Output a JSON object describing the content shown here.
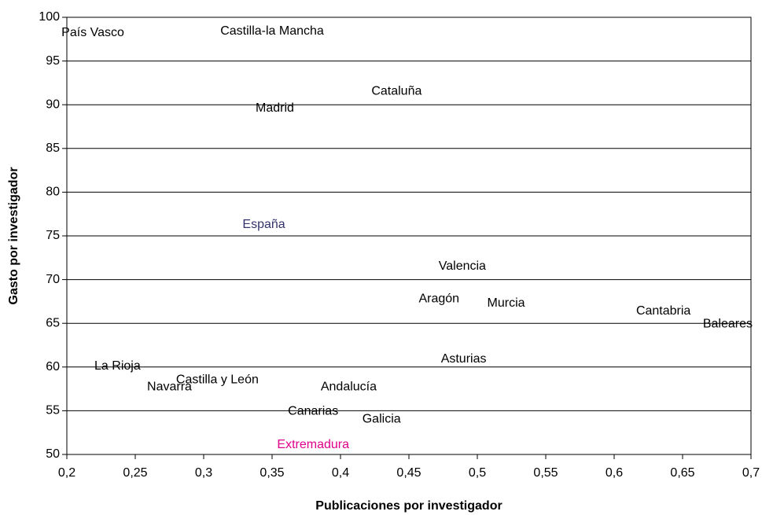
{
  "chart_data": {
    "type": "scatter",
    "x_label": "Publicaciones por investigador",
    "y_label": "Gasto por investigador",
    "labels": [
      "País Vasco",
      "Castilla-la Mancha",
      "Cataluña",
      "Madrid",
      "España",
      "Valencia",
      "Aragón",
      "Murcia",
      "Cantabria",
      "Baleares",
      "Asturias",
      "La Rioja",
      "Castilla y León",
      "Navarra",
      "Andalucía",
      "Canarias",
      "Galicia",
      "Extremadura"
    ],
    "x": [
      0.219,
      0.35,
      0.441,
      0.352,
      0.344,
      0.489,
      0.472,
      0.521,
      0.636,
      0.683,
      0.49,
      0.237,
      0.31,
      0.275,
      0.406,
      0.38,
      0.43,
      0.38
    ],
    "values": [
      98.2,
      98.4,
      91.5,
      89.6,
      76.3,
      71.5,
      67.8,
      67.3,
      66.4,
      64.9,
      60.9,
      60.1,
      58.5,
      57.7,
      57.7,
      54.9,
      54.0,
      51.1
    ],
    "colors": [
      "#000000",
      "#000000",
      "#000000",
      "#000000",
      "#33336b",
      "#000000",
      "#000000",
      "#000000",
      "#000000",
      "#000000",
      "#000000",
      "#000000",
      "#000000",
      "#000000",
      "#000000",
      "#000000",
      "#000000",
      "#e0008a"
    ],
    "xlim": [
      0.2,
      0.7
    ],
    "xticks": [
      {
        "value": 0.2,
        "label": "0,2"
      },
      {
        "value": 0.25,
        "label": "0,25"
      },
      {
        "value": 0.3,
        "label": "0,3"
      },
      {
        "value": 0.35,
        "label": "0,35"
      },
      {
        "value": 0.4,
        "label": "0,4"
      },
      {
        "value": 0.45,
        "label": "0,45"
      },
      {
        "value": 0.5,
        "label": "0,5"
      },
      {
        "value": 0.55,
        "label": "0,55"
      },
      {
        "value": 0.6,
        "label": "0,6"
      },
      {
        "value": 0.65,
        "label": "0,65"
      },
      {
        "value": 0.7,
        "label": "0,7"
      }
    ],
    "ylim": [
      50,
      100
    ],
    "yticks": [
      50,
      55,
      60,
      65,
      70,
      75,
      80,
      85,
      90,
      95,
      100
    ],
    "grid": true
  }
}
